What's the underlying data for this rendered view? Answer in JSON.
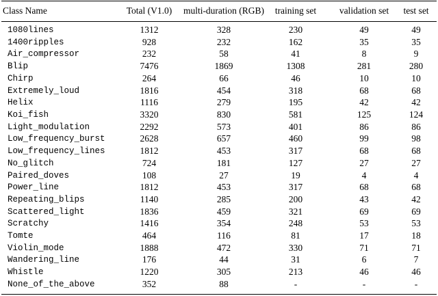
{
  "table": {
    "columns": [
      "Class Name",
      "Total (V1.0)",
      "multi-duration (RGB)",
      "training set",
      "validation set",
      "test set"
    ],
    "rows": [
      [
        "1080lines",
        1312,
        328,
        230,
        49,
        49
      ],
      [
        "1400ripples",
        928,
        232,
        162,
        35,
        35
      ],
      [
        "Air_compressor",
        232,
        58,
        41,
        8,
        9
      ],
      [
        "Blip",
        7476,
        1869,
        1308,
        281,
        280
      ],
      [
        "Chirp",
        264,
        66,
        46,
        10,
        10
      ],
      [
        "Extremely_loud",
        1816,
        454,
        318,
        68,
        68
      ],
      [
        "Helix",
        1116,
        279,
        195,
        42,
        42
      ],
      [
        "Koi_fish",
        3320,
        830,
        581,
        125,
        124
      ],
      [
        "Light_modulation",
        2292,
        573,
        401,
        86,
        86
      ],
      [
        "Low_frequency_burst",
        2628,
        657,
        460,
        99,
        98
      ],
      [
        "Low_frequency_lines",
        1812,
        453,
        317,
        68,
        68
      ],
      [
        "No_glitch",
        724,
        181,
        127,
        27,
        27
      ],
      [
        "Paired_doves",
        108,
        27,
        19,
        4,
        4
      ],
      [
        "Power_line",
        1812,
        453,
        317,
        68,
        68
      ],
      [
        "Repeating_blips",
        1140,
        285,
        200,
        43,
        42
      ],
      [
        "Scattered_light",
        1836,
        459,
        321,
        69,
        69
      ],
      [
        "Scratchy",
        1416,
        354,
        248,
        53,
        53
      ],
      [
        "Tomte",
        464,
        116,
        81,
        17,
        18
      ],
      [
        "Violin_mode",
        1888,
        472,
        330,
        71,
        71
      ],
      [
        "Wandering_line",
        176,
        44,
        31,
        6,
        7
      ],
      [
        "Whistle",
        1220,
        305,
        213,
        46,
        46
      ],
      [
        "None_of_the_above",
        352,
        88,
        "-",
        "-",
        "-"
      ]
    ]
  }
}
